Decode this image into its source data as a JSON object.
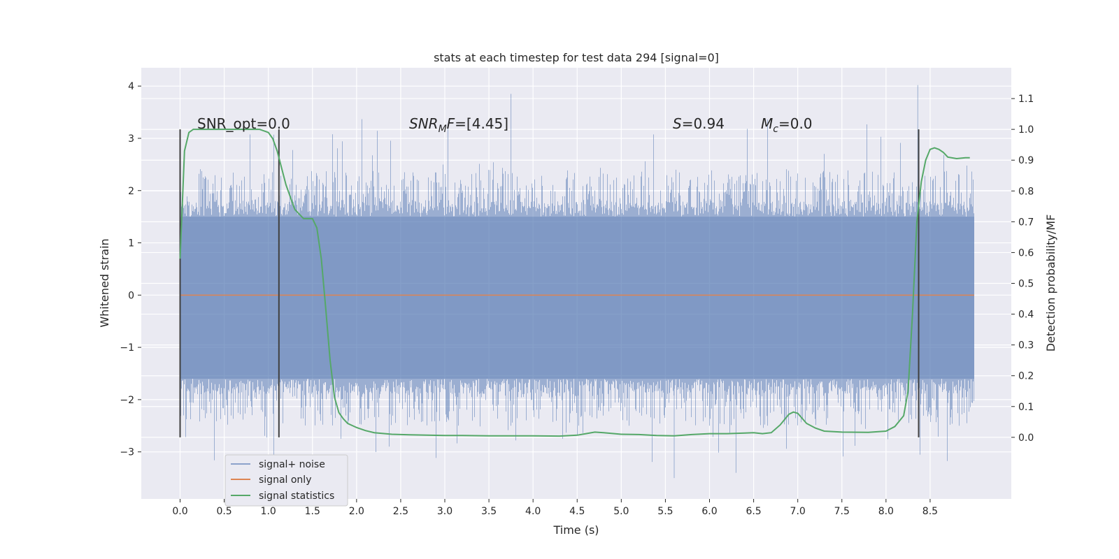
{
  "chart_data": {
    "type": "line",
    "title": "stats at each timestep for test data 294 [signal=0]",
    "xlabel": "Time (s)",
    "ylabel": "Whitened strain",
    "y2label": "Detection probability/MF",
    "xlim": [
      -0.44,
      9.42
    ],
    "ylim": [
      -3.9,
      4.35
    ],
    "y2lim": [
      -0.2,
      1.2
    ],
    "x_ticks": [
      "0.0",
      "0.5",
      "1.0",
      "1.5",
      "2.0",
      "2.5",
      "3.0",
      "3.5",
      "4.0",
      "4.5",
      "5.0",
      "5.5",
      "6.0",
      "6.5",
      "7.0",
      "7.5",
      "8.0",
      "8.5"
    ],
    "y_ticks": [
      "−3",
      "−2",
      "−1",
      "0",
      "1",
      "2",
      "3",
      "4"
    ],
    "y2_ticks": [
      "0.0",
      "0.1",
      "0.2",
      "0.3",
      "0.4",
      "0.5",
      "0.6",
      "0.7",
      "0.8",
      "0.9",
      "1.0",
      "1.1"
    ],
    "grid": true,
    "legend_position": "lower-left",
    "colors": {
      "background": "#eaeaf2",
      "grid": "#ffffff",
      "noise": "#4c72b0",
      "signal_only": "#dd8452",
      "statistics": "#55a868",
      "markers": "#404040"
    },
    "annotations": {
      "snr_opt": "SNR_opt=0.0",
      "snr_mf_main": "SNR",
      "snr_mf_sub": "M",
      "snr_mf_rest": "F=[4.45]",
      "s_var": "S",
      "s_rest": "=0.94",
      "mc_var": "M",
      "mc_sub": "c",
      "mc_rest": "=0.0"
    },
    "vertical_markers_x": [
      0.0,
      1.12,
      8.37
    ],
    "noise_band": {
      "x_range": [
        0.0,
        9.0
      ],
      "dense_range": [
        -1.6,
        1.5
      ],
      "peak_examples": [
        {
          "x": 3.75,
          "y": 3.85
        },
        {
          "x": 8.36,
          "y": 4.02
        },
        {
          "x": 5.6,
          "y": -3.5
        },
        {
          "x": 6.3,
          "y": -3.4
        }
      ]
    },
    "series": [
      {
        "name": "signal+ noise",
        "description_type": "noise"
      },
      {
        "name": "signal only",
        "x": [
          0.0,
          9.0
        ],
        "y": [
          0.0,
          0.0
        ]
      },
      {
        "name": "signal statistics",
        "axis": "right",
        "x": [
          0.0,
          0.05,
          0.1,
          0.15,
          0.2,
          0.3,
          0.5,
          0.7,
          0.9,
          1.0,
          1.05,
          1.1,
          1.2,
          1.3,
          1.4,
          1.45,
          1.5,
          1.55,
          1.6,
          1.65,
          1.7,
          1.75,
          1.8,
          1.85,
          1.9,
          2.0,
          2.1,
          2.2,
          2.4,
          2.6,
          2.8,
          3.0,
          3.2,
          3.5,
          4.0,
          4.3,
          4.5,
          4.6,
          4.7,
          4.8,
          5.0,
          5.2,
          5.4,
          5.6,
          5.8,
          6.0,
          6.2,
          6.4,
          6.5,
          6.6,
          6.7,
          6.8,
          6.9,
          6.95,
          7.0,
          7.1,
          7.2,
          7.3,
          7.5,
          7.8,
          8.0,
          8.1,
          8.2,
          8.25,
          8.3,
          8.35,
          8.4,
          8.45,
          8.5,
          8.55,
          8.6,
          8.65,
          8.7,
          8.8,
          8.9,
          8.95
        ],
        "y": [
          0.58,
          0.93,
          0.99,
          1.0,
          1.0,
          1.0,
          1.0,
          1.0,
          1.0,
          0.99,
          0.97,
          0.93,
          0.82,
          0.74,
          0.71,
          0.71,
          0.71,
          0.68,
          0.58,
          0.42,
          0.25,
          0.13,
          0.08,
          0.06,
          0.045,
          0.032,
          0.022,
          0.015,
          0.01,
          0.008,
          0.007,
          0.006,
          0.006,
          0.005,
          0.005,
          0.004,
          0.007,
          0.012,
          0.017,
          0.015,
          0.01,
          0.009,
          0.006,
          0.005,
          0.009,
          0.012,
          0.012,
          0.014,
          0.015,
          0.012,
          0.015,
          0.04,
          0.075,
          0.082,
          0.078,
          0.045,
          0.03,
          0.02,
          0.017,
          0.016,
          0.02,
          0.035,
          0.07,
          0.15,
          0.4,
          0.7,
          0.83,
          0.9,
          0.935,
          0.94,
          0.935,
          0.925,
          0.91,
          0.905,
          0.908,
          0.908
        ]
      }
    ]
  }
}
